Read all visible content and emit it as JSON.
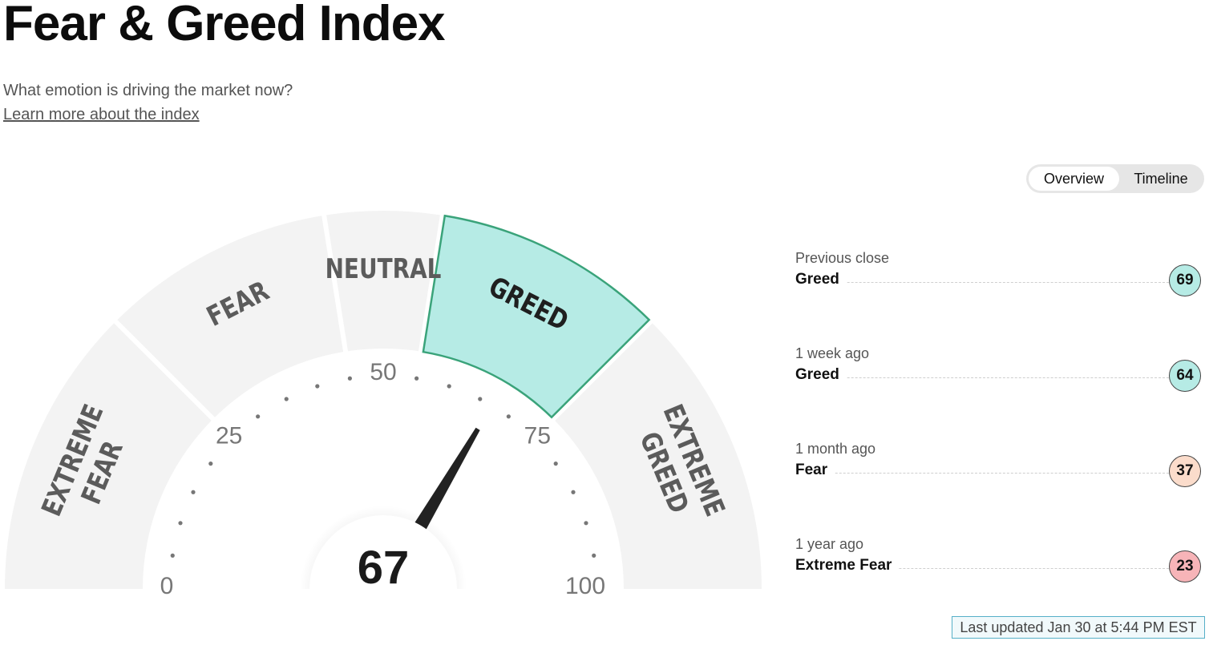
{
  "title": "Fear & Greed Index",
  "subtitle": "What emotion is driving the market now?",
  "learn_more": "Learn more about the index",
  "tabs": {
    "overview": "Overview",
    "timeline": "Timeline",
    "active": "overview"
  },
  "gauge": {
    "score": 67,
    "score_text": "67",
    "active_segment": "GREED",
    "segments": [
      {
        "name": "EXTREME FEAR",
        "lines": [
          "EXTREME",
          "FEAR"
        ],
        "from": 0,
        "to": 25
      },
      {
        "name": "FEAR",
        "lines": [
          "FEAR"
        ],
        "from": 25,
        "to": 45
      },
      {
        "name": "NEUTRAL",
        "lines": [
          "NEUTRAL"
        ],
        "from": 45,
        "to": 55
      },
      {
        "name": "GREED",
        "lines": [
          "GREED"
        ],
        "from": 55,
        "to": 75
      },
      {
        "name": "EXTREME GREED",
        "lines": [
          "EXTREME",
          "GREED"
        ],
        "from": 75,
        "to": 100
      }
    ],
    "tick_labels": [
      "0",
      "25",
      "50",
      "75",
      "100"
    ],
    "colors": {
      "segment": "#f3f3f3",
      "active_segment": "#b6ebe5",
      "active_border": "#3aa37a",
      "needle": "#222222"
    }
  },
  "history": [
    {
      "when": "Previous close",
      "rating": "Greed",
      "value": "69",
      "color": "#b6ebe5"
    },
    {
      "when": "1 week ago",
      "rating": "Greed",
      "value": "64",
      "color": "#b6ebe5"
    },
    {
      "when": "1 month ago",
      "rating": "Fear",
      "value": "37",
      "color": "#fbdccb"
    },
    {
      "when": "1 year ago",
      "rating": "Extreme Fear",
      "value": "23",
      "color": "#f7b4b8"
    }
  ],
  "last_updated": "Last updated Jan 30 at 5:44 PM EST"
}
